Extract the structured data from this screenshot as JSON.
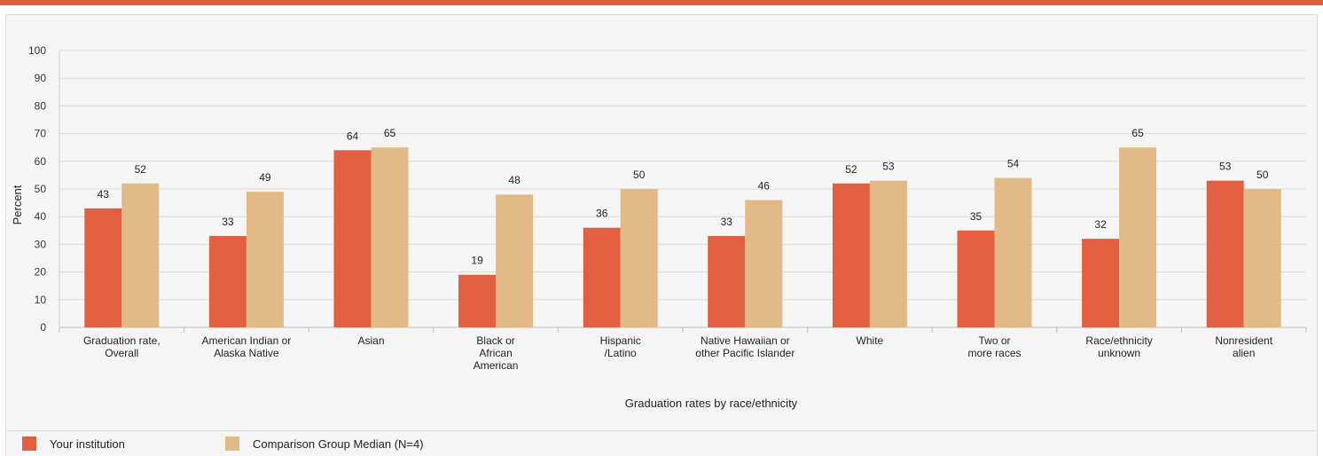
{
  "colors": {
    "your_institution": "#e26040",
    "comparison": "#e2ba87",
    "grid": "#d9d9d9",
    "top_bar": "#d9603b"
  },
  "chart_data": {
    "type": "bar",
    "xlabel": "Graduation rates by race/ethnicity",
    "ylabel": "Percent",
    "ylim": [
      0,
      100
    ],
    "yticks": [
      0,
      10,
      20,
      30,
      40,
      50,
      60,
      70,
      80,
      90,
      100
    ],
    "grid": true,
    "legend_position": "bottom-left",
    "categories": [
      [
        "Graduation rate,",
        "Overall"
      ],
      [
        "American Indian or",
        "Alaska Native"
      ],
      [
        "Asian"
      ],
      [
        "Black or",
        "African",
        "American"
      ],
      [
        "Hispanic",
        "/Latino"
      ],
      [
        "Native Hawaiian or",
        "other Pacific Islander"
      ],
      [
        "White"
      ],
      [
        "Two or",
        "more races"
      ],
      [
        "Race/ethnicity",
        "unknown"
      ],
      [
        "Nonresident",
        "alien"
      ]
    ],
    "series": [
      {
        "name": "Your institution",
        "values": [
          43,
          33,
          64,
          19,
          36,
          33,
          52,
          35,
          32,
          53
        ]
      },
      {
        "name": "Comparison Group Median (N=4)",
        "values": [
          52,
          49,
          65,
          48,
          50,
          46,
          53,
          54,
          65,
          50
        ]
      }
    ]
  }
}
